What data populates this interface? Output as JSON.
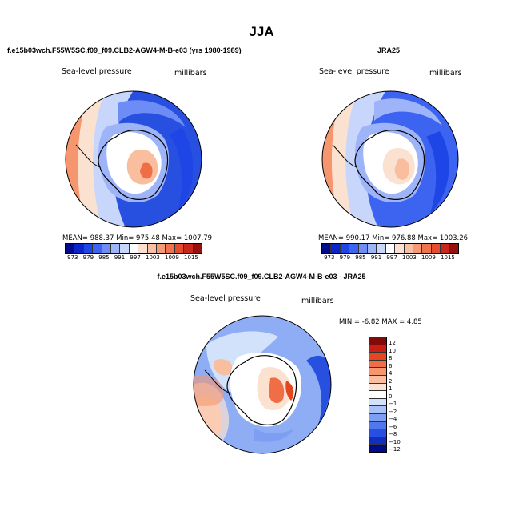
{
  "title": "JJA",
  "panels": {
    "model": {
      "header": "f.e15b03wch.F55W5SC.f09_f09.CLB2-AGW4-M-B-e03 (yrs 1980-1989)",
      "variable": "Sea-level pressure",
      "units": "millibars",
      "stats": "MEAN= 988.37   Min= 975.48   Max= 1007.79"
    },
    "obs": {
      "header": "JRA25",
      "variable": "Sea-level pressure",
      "units": "millibars",
      "stats": "MEAN= 990.17   Min= 976.88   Max= 1003.26"
    },
    "diff": {
      "header": "f.e15b03wch.F55W5SC.f09_f09.CLB2-AGW4-M-B-e03 - JRA25",
      "variable": "Sea-level pressure",
      "units": "millibars",
      "stats": "MIN =  -6.82  MAX =   4.85"
    }
  },
  "colorbar_abs": {
    "ticks": [
      "973",
      "979",
      "985",
      "991",
      "997",
      "1003",
      "1009",
      "1015"
    ],
    "colors": [
      "#000a8c",
      "#0a26c8",
      "#1e46e6",
      "#3c64f0",
      "#6e8cf5",
      "#9eb4f8",
      "#c8d6fb",
      "#ffffff",
      "#fbe0d2",
      "#f8bfa3",
      "#f59a77",
      "#f0734e",
      "#e54b2d",
      "#c8281b",
      "#96100e"
    ]
  },
  "colorbar_diff": {
    "ticks": [
      "12",
      "10",
      "8",
      "6",
      "4",
      "2",
      "1",
      "0",
      "−1",
      "−2",
      "−4",
      "−6",
      "−8",
      "−10",
      "−12"
    ],
    "colors": [
      "#820a0a",
      "#c81e14",
      "#e6461e",
      "#f06e46",
      "#f5966e",
      "#f8be9e",
      "#fbe2d0",
      "#ffffff",
      "#d2e2fb",
      "#a8c2f8",
      "#7e9ef3",
      "#5078ec",
      "#2850e0",
      "#102ec4",
      "#000a8c"
    ]
  }
}
